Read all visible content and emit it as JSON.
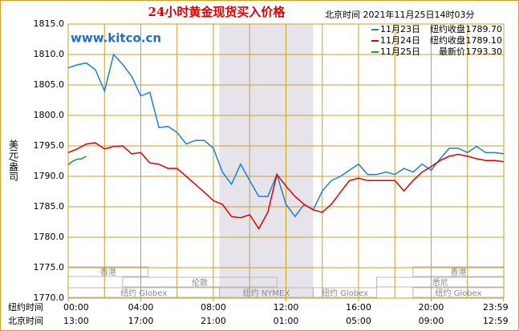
{
  "chart_data": {
    "type": "line",
    "title": "24小时黄金现货买入价格",
    "subtitle": "北京时间 2021年11月25日14时03分",
    "watermark": "www.kitco.cn",
    "ylabel": "美元/盎司",
    "ylim": [
      1770,
      1815
    ],
    "yticks": [
      {
        "value": 1770,
        "label": "1770.0"
      },
      {
        "value": 1775,
        "label": "1775.0"
      },
      {
        "value": 1780,
        "label": "1780.0"
      },
      {
        "value": 1785,
        "label": "1785.0"
      },
      {
        "value": 1790,
        "label": "1790.0"
      },
      {
        "value": 1795,
        "label": "1795.0"
      },
      {
        "value": 1800,
        "label": "1800.0"
      },
      {
        "value": 1805,
        "label": "1805.0"
      },
      {
        "value": 1810,
        "label": "1810.0"
      },
      {
        "value": 1815,
        "label": "1815.0"
      }
    ],
    "xlim": [
      0,
      24
    ],
    "xgrid": [
      0,
      2,
      4,
      6,
      8,
      10,
      12,
      14,
      16,
      18,
      20,
      22,
      24
    ],
    "xticks": [
      {
        "value": 0,
        "label": "00:00"
      },
      {
        "value": 4,
        "label": "04:00"
      },
      {
        "value": 8,
        "label": "08:00"
      },
      {
        "value": 12,
        "label": "12:00"
      },
      {
        "value": 16,
        "label": "16:00"
      },
      {
        "value": 20,
        "label": "20:00"
      },
      {
        "value": 23.983,
        "label": "23:59"
      }
    ],
    "xtick_row_label": "纽约时间",
    "xticks_beijing": [
      "13:00",
      "17:00",
      "21:00",
      "01:00",
      "05:00",
      "09:00",
      "12:59"
    ],
    "xtick_beijing_row_label": "北京时间",
    "shaded_range": [
      8.33,
      13.5
    ],
    "sessions": [
      {
        "name": "香港",
        "row": 0,
        "start": 0,
        "end": 4.4
      },
      {
        "name": "香港",
        "row": 0,
        "start": 19,
        "end": 24
      },
      {
        "name": "伦敦",
        "row": 1,
        "start": 3,
        "end": 11.5
      },
      {
        "name": "悉尼",
        "row": 1,
        "start": 17,
        "end": 24
      },
      {
        "name": "纽约 Globex",
        "row": 2,
        "start": 0,
        "end": 8.33
      },
      {
        "name": "纽约 NYMEX",
        "row": 2,
        "start": 8.33,
        "end": 13.5
      },
      {
        "name": "纽约 Globex",
        "row": 2,
        "start": 13.5,
        "end": 17
      },
      {
        "name": "纽约 Globex",
        "row": 2,
        "start": 19,
        "end": 24
      }
    ],
    "series": [
      {
        "name": "11月23日",
        "legend_label": "纽约收盘",
        "legend_value": "1789.70",
        "color": "#1a7fe0",
        "x": [
          0,
          0.5,
          1,
          1.5,
          2,
          2.5,
          3,
          3.5,
          4,
          4.5,
          5,
          5.5,
          6,
          6.5,
          7,
          7.5,
          8,
          8.5,
          9,
          9.5,
          10,
          10.5,
          11,
          11.5,
          12,
          12.5,
          13,
          13.5,
          14,
          14.5,
          15,
          15.5,
          16,
          16.5,
          17,
          17.5,
          18,
          18.5,
          19,
          19.5,
          20,
          20.5,
          21,
          21.5,
          22,
          22.5,
          23,
          23.5,
          24
        ],
        "values": [
          1807.8,
          1808.3,
          1808.6,
          1807.5,
          1804,
          1810,
          1808.4,
          1806.4,
          1803.2,
          1803.8,
          1798,
          1798.2,
          1797.2,
          1795.3,
          1795.9,
          1795.9,
          1794.6,
          1790.7,
          1788.7,
          1792,
          1789.3,
          1786.7,
          1786.7,
          1790.3,
          1785.4,
          1783.4,
          1785.4,
          1784.5,
          1787.6,
          1789.3,
          1790,
          1791,
          1792,
          1790.3,
          1790.3,
          1790.7,
          1790.3,
          1791.3,
          1790.7,
          1792,
          1791,
          1792.9,
          1794.6,
          1794.6,
          1793.9,
          1794.9,
          1793.9,
          1793.9,
          1793.7
        ]
      },
      {
        "name": "11月24日",
        "legend_label": "纽约收盘",
        "legend_value": "1789.10",
        "color": "#e00000",
        "x": [
          0,
          0.5,
          1,
          1.5,
          2,
          2.5,
          3,
          3.5,
          4,
          4.5,
          5,
          5.5,
          6,
          6.5,
          7,
          7.5,
          8,
          8.5,
          9,
          9.5,
          10,
          10.5,
          11,
          11.5,
          12,
          12.5,
          13,
          13.5,
          14,
          14.5,
          15,
          15.5,
          16,
          16.5,
          17,
          17.5,
          18,
          18.5,
          19,
          19.5,
          20,
          20.5,
          21,
          21.5,
          22,
          22.5,
          23,
          23.5,
          24
        ],
        "values": [
          1793.9,
          1794.5,
          1795.3,
          1795.5,
          1794.5,
          1794.9,
          1795,
          1793.7,
          1793.9,
          1792.2,
          1792,
          1791.3,
          1791.3,
          1790,
          1788.7,
          1787.4,
          1786,
          1785.4,
          1783.4,
          1783.2,
          1783.7,
          1781.4,
          1784.1,
          1790.3,
          1788.4,
          1786.7,
          1785.4,
          1784.5,
          1784.1,
          1785.4,
          1787.4,
          1789.3,
          1789.7,
          1789.3,
          1789.3,
          1789.3,
          1789.3,
          1787.6,
          1789.3,
          1790.7,
          1791.6,
          1792.6,
          1793.3,
          1793.6,
          1793.3,
          1792.9,
          1792.6,
          1792.6,
          1792.4
        ]
      },
      {
        "name": "11月25日",
        "legend_label": "最新价",
        "legend_value": "1793.30",
        "color": "#1aa01a",
        "x": [
          0,
          0.25,
          0.5,
          0.75,
          1
        ],
        "values": [
          1791.9,
          1792.5,
          1792.8,
          1792.9,
          1793.3
        ]
      }
    ]
  }
}
